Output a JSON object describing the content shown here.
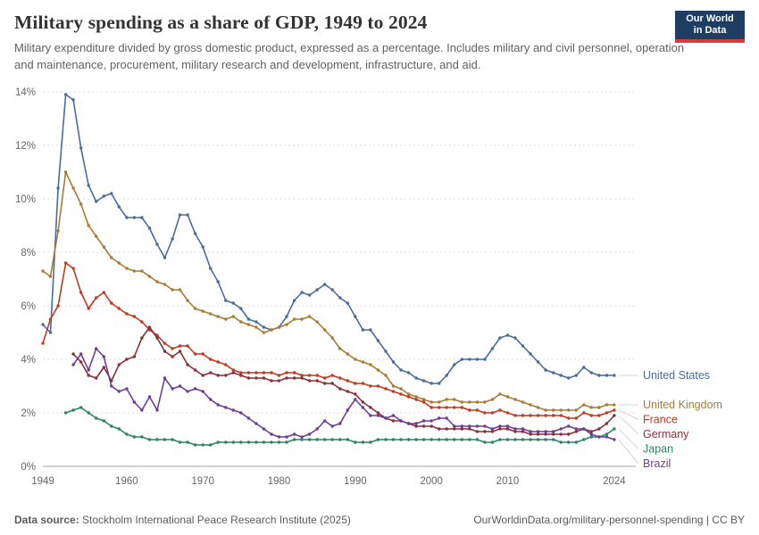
{
  "header": {
    "title": "Military spending as a share of GDP, 1949 to 2024",
    "subtitle": "Military expenditure divided by gross domestic product, expressed as a percentage. Includes military and civil personnel, operation and maintenance, procurement, military research and development, infrastructure, and aid.",
    "logo": {
      "line1": "Our World",
      "line2": "in Data"
    }
  },
  "footer": {
    "datasource_label": "Data source:",
    "datasource": "Stockholm International Peace Research Institute (2025)",
    "link": "OurWorldinData.org/military-personnel-spending | CC BY"
  },
  "colors": {
    "navy": "#1d3d63",
    "red_accent": "#e0373c",
    "grid": "#dcdcdc",
    "axis_text": "#666666"
  },
  "chart_data": {
    "type": "line",
    "title": "Military spending as a share of GDP, 1949 to 2024",
    "xlabel": "",
    "ylabel": "",
    "ylim": [
      0,
      14
    ],
    "yticks": [
      0,
      2,
      4,
      6,
      8,
      10,
      12,
      14
    ],
    "ytick_suffix": "%",
    "xticks": [
      1949,
      1960,
      1970,
      1980,
      1990,
      2000,
      2010,
      2024
    ],
    "grid": "horizontal-dotted",
    "legend_position": "right-of-lines",
    "x": [
      1949,
      1950,
      1951,
      1952,
      1953,
      1954,
      1955,
      1956,
      1957,
      1958,
      1959,
      1960,
      1961,
      1962,
      1963,
      1964,
      1965,
      1966,
      1967,
      1968,
      1969,
      1970,
      1971,
      1972,
      1973,
      1974,
      1975,
      1976,
      1977,
      1978,
      1979,
      1980,
      1981,
      1982,
      1983,
      1984,
      1985,
      1986,
      1987,
      1988,
      1989,
      1990,
      1991,
      1992,
      1993,
      1994,
      1995,
      1996,
      1997,
      1998,
      1999,
      2000,
      2001,
      2002,
      2003,
      2004,
      2005,
      2006,
      2007,
      2008,
      2009,
      2010,
      2011,
      2012,
      2013,
      2014,
      2015,
      2016,
      2017,
      2018,
      2019,
      2020,
      2021,
      2022,
      2023,
      2024
    ],
    "series": [
      {
        "name": "United States",
        "color": "#4C6A9C",
        "values": [
          5.3,
          5.0,
          10.4,
          13.9,
          13.7,
          11.9,
          10.5,
          9.9,
          10.1,
          10.2,
          9.7,
          9.3,
          9.3,
          9.3,
          8.9,
          8.3,
          7.8,
          8.5,
          9.4,
          9.4,
          8.7,
          8.2,
          7.4,
          6.9,
          6.2,
          6.1,
          5.9,
          5.5,
          5.4,
          5.2,
          5.1,
          5.2,
          5.6,
          6.2,
          6.5,
          6.4,
          6.6,
          6.8,
          6.6,
          6.3,
          6.1,
          5.6,
          5.1,
          5.1,
          4.7,
          4.3,
          3.9,
          3.6,
          3.5,
          3.3,
          3.2,
          3.1,
          3.1,
          3.4,
          3.8,
          4.0,
          4.0,
          4.0,
          4.0,
          4.4,
          4.8,
          4.9,
          4.8,
          4.5,
          4.2,
          3.9,
          3.6,
          3.5,
          3.4,
          3.3,
          3.4,
          3.7,
          3.5,
          3.4,
          3.4,
          3.4
        ]
      },
      {
        "name": "United Kingdom",
        "color": "#A87C33",
        "values": [
          7.3,
          7.1,
          8.8,
          11.0,
          10.4,
          9.8,
          9.0,
          8.6,
          8.2,
          7.8,
          7.6,
          7.4,
          7.3,
          7.3,
          7.1,
          6.9,
          6.8,
          6.6,
          6.6,
          6.2,
          5.9,
          5.8,
          5.7,
          5.6,
          5.5,
          5.6,
          5.4,
          5.3,
          5.2,
          5.0,
          5.1,
          5.2,
          5.3,
          5.5,
          5.5,
          5.6,
          5.4,
          5.1,
          4.8,
          4.4,
          4.2,
          4.0,
          3.9,
          3.8,
          3.6,
          3.4,
          3.0,
          2.9,
          2.7,
          2.6,
          2.5,
          2.4,
          2.4,
          2.5,
          2.5,
          2.4,
          2.4,
          2.4,
          2.4,
          2.5,
          2.7,
          2.6,
          2.5,
          2.4,
          2.3,
          2.2,
          2.1,
          2.1,
          2.1,
          2.1,
          2.1,
          2.3,
          2.2,
          2.2,
          2.3,
          2.3
        ]
      },
      {
        "name": "France",
        "color": "#C03A21",
        "values": [
          4.6,
          5.5,
          6.0,
          7.6,
          7.4,
          6.5,
          5.9,
          6.3,
          6.5,
          6.1,
          5.9,
          5.7,
          5.6,
          5.4,
          5.1,
          4.9,
          4.6,
          4.4,
          4.5,
          4.5,
          4.2,
          4.2,
          4.0,
          3.9,
          3.8,
          3.6,
          3.5,
          3.5,
          3.5,
          3.5,
          3.5,
          3.4,
          3.5,
          3.5,
          3.4,
          3.4,
          3.4,
          3.3,
          3.4,
          3.3,
          3.2,
          3.1,
          3.1,
          3.0,
          3.0,
          2.9,
          2.8,
          2.7,
          2.6,
          2.5,
          2.4,
          2.2,
          2.2,
          2.2,
          2.2,
          2.2,
          2.1,
          2.1,
          2.0,
          2.0,
          2.1,
          2.0,
          1.9,
          1.9,
          1.9,
          1.9,
          1.9,
          1.9,
          1.9,
          1.8,
          1.8,
          2.0,
          1.9,
          1.9,
          2.0,
          2.1
        ]
      },
      {
        "name": "Germany",
        "color": "#883039",
        "values": [
          null,
          null,
          null,
          null,
          4.2,
          3.9,
          3.4,
          3.3,
          3.7,
          3.2,
          3.8,
          4.0,
          4.1,
          4.8,
          5.2,
          4.8,
          4.3,
          4.1,
          4.3,
          3.8,
          3.6,
          3.4,
          3.5,
          3.4,
          3.4,
          3.5,
          3.4,
          3.3,
          3.3,
          3.3,
          3.2,
          3.2,
          3.3,
          3.3,
          3.3,
          3.2,
          3.2,
          3.1,
          3.1,
          2.9,
          2.8,
          2.7,
          2.4,
          2.2,
          2.0,
          1.8,
          1.7,
          1.7,
          1.6,
          1.5,
          1.5,
          1.5,
          1.4,
          1.4,
          1.4,
          1.4,
          1.4,
          1.3,
          1.3,
          1.3,
          1.4,
          1.4,
          1.3,
          1.3,
          1.2,
          1.2,
          1.2,
          1.2,
          1.2,
          1.2,
          1.3,
          1.4,
          1.3,
          1.4,
          1.6,
          1.9
        ]
      },
      {
        "name": "Japan",
        "color": "#2C8465",
        "values": [
          null,
          null,
          null,
          2.0,
          2.1,
          2.2,
          2.0,
          1.8,
          1.7,
          1.5,
          1.4,
          1.2,
          1.1,
          1.1,
          1.0,
          1.0,
          1.0,
          1.0,
          0.9,
          0.9,
          0.8,
          0.8,
          0.8,
          0.9,
          0.9,
          0.9,
          0.9,
          0.9,
          0.9,
          0.9,
          0.9,
          0.9,
          0.9,
          1.0,
          1.0,
          1.0,
          1.0,
          1.0,
          1.0,
          1.0,
          1.0,
          0.9,
          0.9,
          0.9,
          1.0,
          1.0,
          1.0,
          1.0,
          1.0,
          1.0,
          1.0,
          1.0,
          1.0,
          1.0,
          1.0,
          1.0,
          1.0,
          1.0,
          0.9,
          0.9,
          1.0,
          1.0,
          1.0,
          1.0,
          1.0,
          1.0,
          1.0,
          1.0,
          0.9,
          0.9,
          0.9,
          1.0,
          1.1,
          1.1,
          1.2,
          1.4
        ]
      },
      {
        "name": "Brazil",
        "color": "#6D3E91",
        "values": [
          null,
          null,
          null,
          null,
          3.8,
          4.2,
          3.6,
          4.4,
          4.1,
          3.0,
          2.8,
          2.9,
          2.4,
          2.1,
          2.6,
          2.1,
          3.3,
          2.9,
          3.0,
          2.8,
          2.9,
          2.8,
          2.5,
          2.3,
          2.2,
          2.1,
          2.0,
          1.8,
          1.6,
          1.4,
          1.2,
          1.1,
          1.1,
          1.2,
          1.1,
          1.2,
          1.4,
          1.7,
          1.5,
          1.6,
          2.1,
          2.5,
          2.2,
          1.9,
          1.9,
          1.8,
          1.9,
          1.7,
          1.6,
          1.6,
          1.7,
          1.7,
          1.8,
          1.8,
          1.5,
          1.5,
          1.5,
          1.5,
          1.5,
          1.4,
          1.5,
          1.5,
          1.4,
          1.4,
          1.3,
          1.3,
          1.3,
          1.3,
          1.4,
          1.5,
          1.4,
          1.4,
          1.2,
          1.1,
          1.1,
          1.0
        ]
      }
    ]
  }
}
